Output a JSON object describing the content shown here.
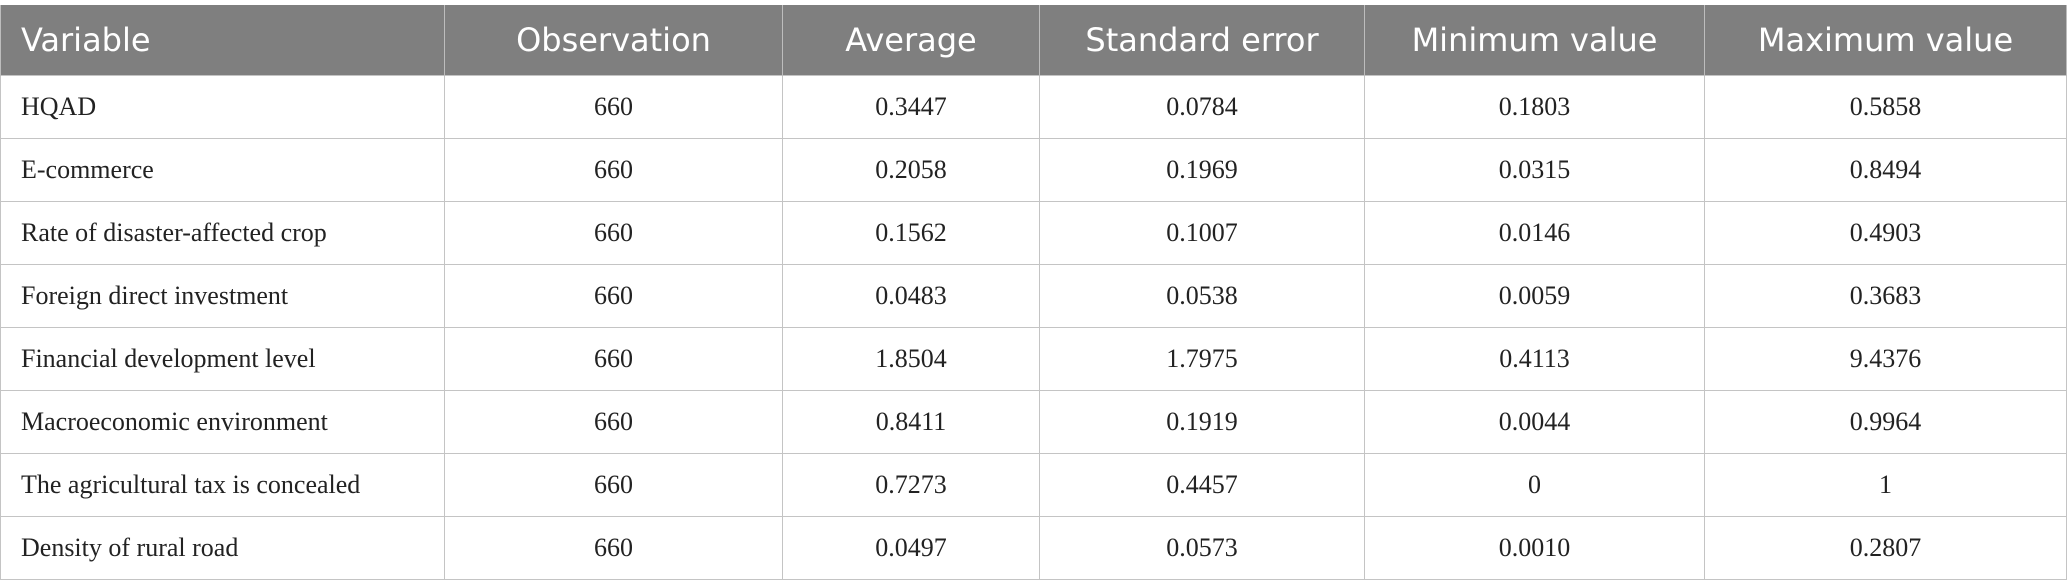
{
  "table": {
    "header": [
      "Variable",
      "Observation",
      "Average",
      "Standard error",
      "Minimum value",
      "Maximum value"
    ],
    "rows": [
      [
        "HQAD",
        "660",
        "0.3447",
        "0.0784",
        "0.1803",
        "0.5858"
      ],
      [
        "E-commerce",
        "660",
        "0.2058",
        "0.1969",
        "0.0315",
        "0.8494"
      ],
      [
        "Rate of disaster-affected crop",
        "660",
        "0.1562",
        "0.1007",
        "0.0146",
        "0.4903"
      ],
      [
        "Foreign direct investment",
        "660",
        "0.0483",
        "0.0538",
        "0.0059",
        "0.3683"
      ],
      [
        "Financial development level",
        "660",
        "1.8504",
        "1.7975",
        "0.4113",
        "9.4376"
      ],
      [
        "Macroeconomic environment",
        "660",
        "0.8411",
        "0.1919",
        "0.0044",
        "0.9964"
      ],
      [
        "The agricultural tax is concealed",
        "660",
        "0.7273",
        "0.4457",
        "0",
        "1"
      ],
      [
        "Density of rural road",
        "660",
        "0.0497",
        "0.0573",
        "0.0010",
        "0.2807"
      ]
    ]
  }
}
